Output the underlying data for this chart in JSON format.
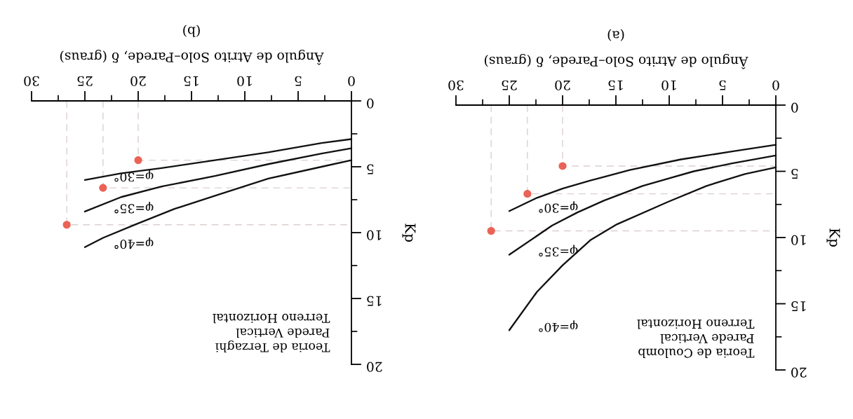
{
  "chart_data": [
    {
      "type": "line",
      "title": "(a)",
      "xlabel": "Ângulo de Atrito Solo–Parede, δ (graus)",
      "ylabel": "Kp",
      "annotations": [
        "Teoria de Coulomb\nParede Vertical\nTerreno Horizontal"
      ],
      "xlim": [
        30,
        0
      ],
      "ylim": [
        20,
        0
      ],
      "xticks": [
        0,
        {
          "value": 2.5,
          "label": null
        },
        5,
        {
          "value": 7.5,
          "label": null
        },
        10,
        {
          "value": 12.5,
          "label": null
        },
        15,
        {
          "value": 17.5,
          "label": null
        },
        20,
        {
          "value": 22.5,
          "label": null
        },
        25,
        {
          "value": 27.5,
          "label": null
        },
        30
      ],
      "yticks": [
        0,
        {
          "value": 2.5,
          "label": null
        },
        5,
        {
          "value": 7.5,
          "label": null
        },
        10,
        {
          "value": 12.5,
          "label": null
        },
        15,
        {
          "value": 17.5,
          "label": null
        },
        20
      ],
      "series": [
        {
          "color": "#dccfcf",
          "line_style": "dashed",
          "x": [
            20,
            20,
            0
          ],
          "values": [
            0,
            4.6,
            4.6
          ]
        },
        {
          "color": "#dccfcf",
          "line_style": "dashed",
          "x": [
            23.3,
            23.3,
            0
          ],
          "values": [
            0,
            6.7,
            6.7
          ]
        },
        {
          "color": "#dccfcf",
          "line_style": "dashed",
          "x": [
            26.7,
            26.7,
            0
          ],
          "values": [
            0,
            9.5,
            9.5
          ]
        },
        {
          "name": "φ=30°",
          "color": "#111111",
          "x": [
            0,
            4.1,
            8.9,
            13.7,
            17.4,
            20,
            22.4,
            25
          ],
          "values": [
            3.0,
            3.5,
            4.1,
            4.9,
            5.7,
            6.3,
            7.0,
            8.0
          ]
        },
        {
          "name": "φ=35°",
          "color": "#111111",
          "x": [
            0,
            4.1,
            7.7,
            12.5,
            16.1,
            18.6,
            21.0,
            25
          ],
          "values": [
            3.8,
            4.4,
            5.0,
            6.1,
            7.2,
            8.1,
            9.1,
            11.3
          ]
        },
        {
          "name": "φ=40°",
          "color": "#111111",
          "x": [
            0,
            2.9,
            6.5,
            10.1,
            14.9,
            17.4,
            20,
            22.4,
            25
          ],
          "values": [
            4.7,
            5.2,
            6.1,
            7.3,
            9.0,
            10.2,
            12.1,
            14.1,
            17.0
          ]
        },
        {
          "type": "scatter",
          "marker": "circle",
          "color": "#ea6356",
          "x": [
            20,
            23.3,
            26.7
          ],
          "values": [
            4.6,
            6.7,
            9.5
          ]
        }
      ]
    },
    {
      "type": "line",
      "title": "(b)",
      "xlabel": "Ângulo de Atrito Solo–Parede, δ (graus)",
      "ylabel": "Kp",
      "annotations": [
        "Teoria de Terzaghi\nParede Vertical\nTerreno Horizontal"
      ],
      "xlim": [
        30,
        0
      ],
      "ylim": [
        20,
        0
      ],
      "xticks": [
        0,
        {
          "value": 2.5,
          "label": null
        },
        5,
        {
          "value": 7.5,
          "label": null
        },
        10,
        {
          "value": 12.5,
          "label": null
        },
        15,
        {
          "value": 17.5,
          "label": null
        },
        20,
        {
          "value": 22.5,
          "label": null
        },
        25,
        {
          "value": 27.5,
          "label": null
        },
        30
      ],
      "yticks": [
        0,
        {
          "value": 2.5,
          "label": null
        },
        5,
        {
          "value": 7.5,
          "label": null
        },
        10,
        {
          "value": 12.5,
          "label": null
        },
        15,
        {
          "value": 17.5,
          "label": null
        },
        20
      ],
      "series": [
        {
          "color": "#dccfcf",
          "line_style": "dashed",
          "x": [
            20,
            20,
            0
          ],
          "values": [
            0,
            4.5,
            4.5
          ]
        },
        {
          "color": "#dccfcf",
          "line_style": "dashed",
          "x": [
            23.3,
            23.3,
            0
          ],
          "values": [
            0,
            6.6,
            6.6
          ]
        },
        {
          "color": "#dccfcf",
          "line_style": "dashed",
          "x": [
            26.7,
            26.7,
            0
          ],
          "values": [
            0,
            9.4,
            9.4
          ]
        },
        {
          "name": "φ=30°",
          "color": "#111111",
          "x": [
            0,
            2.8,
            7.8,
            12.8,
            17.8,
            21.6,
            25
          ],
          "values": [
            2.9,
            3.2,
            3.9,
            4.5,
            5.1,
            5.5,
            6.0
          ]
        },
        {
          "name": "φ=35°",
          "color": "#111111",
          "x": [
            0,
            2.8,
            7.8,
            12.8,
            17.8,
            21.6,
            25
          ],
          "values": [
            3.6,
            4.0,
            4.8,
            5.7,
            6.5,
            7.3,
            8.4
          ]
        },
        {
          "name": "φ=40°",
          "color": "#111111",
          "x": [
            0,
            2.8,
            7.8,
            12.8,
            16.6,
            20.3,
            23.3,
            25
          ],
          "values": [
            4.5,
            5.0,
            5.9,
            7.2,
            8.2,
            9.4,
            10.4,
            11.1
          ]
        },
        {
          "type": "scatter",
          "marker": "circle",
          "color": "#ea6356",
          "x": [
            20,
            23.3,
            26.7
          ],
          "values": [
            4.5,
            6.6,
            9.4
          ]
        }
      ]
    }
  ]
}
